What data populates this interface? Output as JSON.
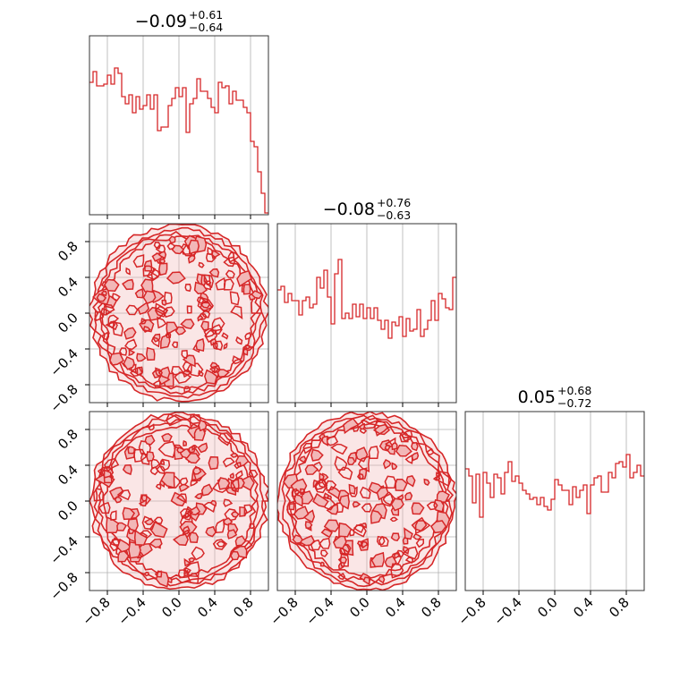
{
  "chart_data": {
    "type": "corner",
    "line_color": "#d62728",
    "fill_color": "#f2b7b7",
    "grid": true,
    "ticks": [
      "−0.8",
      "−0.4",
      "0.0",
      "0.4",
      "0.8"
    ],
    "tick_values": [
      -0.8,
      -0.4,
      0.0,
      0.4,
      0.8
    ],
    "axis_range": [
      -1.0,
      1.0
    ],
    "parameters": [
      {
        "median": "−0.09",
        "upper": "+0.61",
        "lower": "−0.64"
      },
      {
        "median": "−0.08",
        "upper": "+0.76",
        "lower": "−0.63"
      },
      {
        "median": "0.05",
        "upper": "+0.68",
        "lower": "−0.72"
      }
    ],
    "histograms": [
      {
        "bins": 50,
        "range": [
          -1.0,
          1.0
        ],
        "counts": [
          0.74,
          0.8,
          0.72,
          0.72,
          0.73,
          0.78,
          0.73,
          0.82,
          0.79,
          0.66,
          0.62,
          0.67,
          0.57,
          0.66,
          0.59,
          0.61,
          0.67,
          0.59,
          0.67,
          0.47,
          0.49,
          0.49,
          0.61,
          0.65,
          0.71,
          0.66,
          0.71,
          0.46,
          0.62,
          0.65,
          0.76,
          0.69,
          0.69,
          0.65,
          0.6,
          0.57,
          0.74,
          0.71,
          0.72,
          0.62,
          0.69,
          0.64,
          0.64,
          0.6,
          0.57,
          0.41,
          0.38,
          0.24,
          0.12,
          0.01
        ]
      },
      {
        "bins": 50,
        "range": [
          -1.0,
          1.0
        ],
        "counts": [
          0.63,
          0.65,
          0.56,
          0.61,
          0.57,
          0.57,
          0.49,
          0.57,
          0.59,
          0.53,
          0.55,
          0.7,
          0.64,
          0.74,
          0.59,
          0.44,
          0.72,
          0.8,
          0.47,
          0.5,
          0.47,
          0.55,
          0.48,
          0.55,
          0.47,
          0.53,
          0.47,
          0.53,
          0.46,
          0.41,
          0.46,
          0.36,
          0.45,
          0.43,
          0.48,
          0.37,
          0.47,
          0.4,
          0.41,
          0.52,
          0.37,
          0.41,
          0.46,
          0.57,
          0.46,
          0.61,
          0.58,
          0.53,
          0.52,
          0.7
        ]
      },
      {
        "bins": 50,
        "range": [
          -1.0,
          1.0
        ],
        "counts": [
          0.68,
          0.64,
          0.49,
          0.65,
          0.41,
          0.66,
          0.6,
          0.52,
          0.65,
          0.63,
          0.54,
          0.66,
          0.72,
          0.61,
          0.64,
          0.6,
          0.56,
          0.54,
          0.51,
          0.52,
          0.48,
          0.52,
          0.47,
          0.45,
          0.51,
          0.62,
          0.59,
          0.56,
          0.56,
          0.48,
          0.58,
          0.52,
          0.56,
          0.59,
          0.43,
          0.59,
          0.63,
          0.64,
          0.55,
          0.55,
          0.66,
          0.63,
          0.71,
          0.72,
          0.69,
          0.76,
          0.63,
          0.66,
          0.7,
          0.64
        ]
      }
    ],
    "pair_plots": [
      {
        "row": 1,
        "col": 0,
        "kind": "2d-contour",
        "support": "unit-disk"
      },
      {
        "row": 2,
        "col": 0,
        "kind": "2d-contour",
        "support": "unit-disk"
      },
      {
        "row": 2,
        "col": 1,
        "kind": "2d-contour",
        "support": "unit-disk"
      }
    ]
  }
}
